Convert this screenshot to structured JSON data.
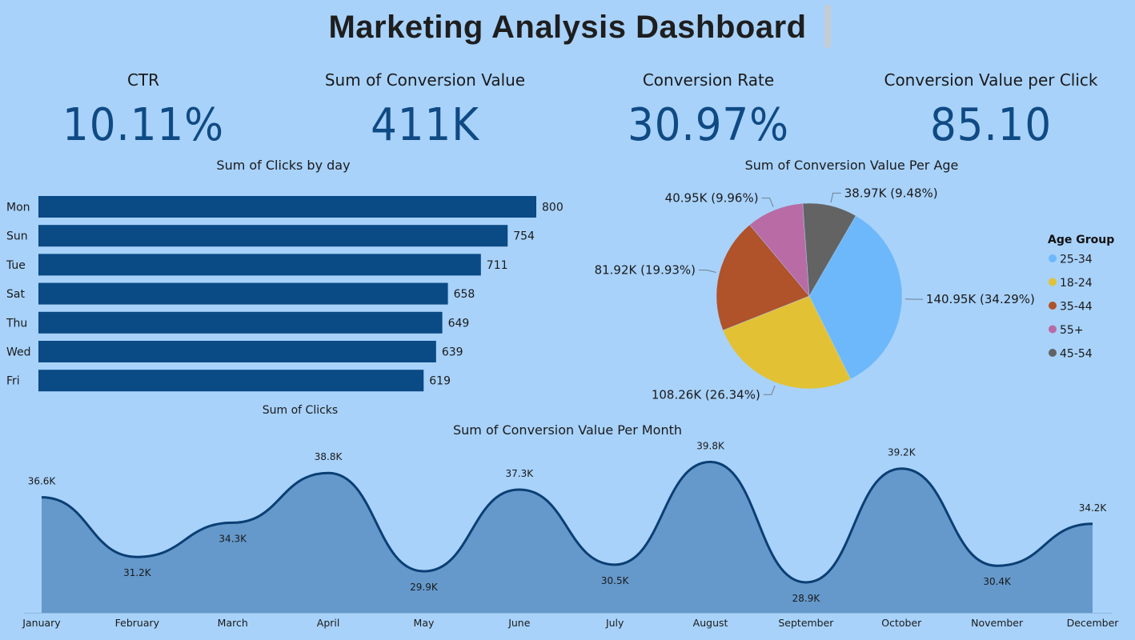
{
  "title": "Marketing Analysis Dashboard",
  "kpis": [
    {
      "label": "CTR",
      "value": "10.11%"
    },
    {
      "label": "Sum of Conversion Value",
      "value": "411K"
    },
    {
      "label": "Conversion Rate",
      "value": "30.97%"
    },
    {
      "label": "Conversion Value per Click",
      "value": "85.10"
    }
  ],
  "colors": {
    "background": "#a8d2fa",
    "bar": "#0a4a85",
    "area_fill": "#6599cb",
    "area_line": "#0b3f74"
  },
  "chart_data": [
    {
      "type": "bar",
      "orientation": "horizontal",
      "title": "Sum of Clicks by day",
      "xlabel": "Sum of Clicks",
      "ylabel": "",
      "categories": [
        "Mon",
        "Sun",
        "Tue",
        "Sat",
        "Thu",
        "Wed",
        "Fri"
      ],
      "values": [
        800,
        754,
        711,
        658,
        649,
        639,
        619
      ],
      "data_labels": [
        "800",
        "754",
        "711",
        "658",
        "649",
        "639",
        "619"
      ],
      "xlim": [
        0,
        800
      ],
      "grid": false
    },
    {
      "type": "pie",
      "title": "Sum of Conversion Value Per Age",
      "legend_title": "Age Group",
      "legend_position": "right",
      "slices": [
        {
          "label": "25-34",
          "value": 140.95,
          "data_label": "140.95K (34.29%)",
          "color": "#6cb8fb"
        },
        {
          "label": "18-24",
          "value": 108.26,
          "data_label": "108.26K (26.34%)",
          "color": "#e2c234"
        },
        {
          "label": "35-44",
          "value": 81.92,
          "data_label": "81.92K (19.93%)",
          "color": "#b0522a"
        },
        {
          "label": "55+",
          "value": 40.95,
          "data_label": "40.95K (9.96%)",
          "color": "#b96ba5"
        },
        {
          "label": "45-54",
          "value": 38.97,
          "data_label": "38.97K (9.48%)",
          "color": "#636363"
        }
      ]
    },
    {
      "type": "area",
      "title": "Sum of Conversion Value Per Month",
      "xlabel": "",
      "ylabel": "",
      "categories": [
        "January",
        "February",
        "March",
        "April",
        "May",
        "June",
        "July",
        "August",
        "September",
        "October",
        "November",
        "December"
      ],
      "values": [
        36.6,
        31.2,
        34.3,
        38.8,
        29.9,
        37.3,
        30.5,
        39.8,
        28.9,
        39.2,
        30.4,
        34.2
      ],
      "data_labels": [
        "36.6K",
        "31.2K",
        "34.3K",
        "38.8K",
        "29.9K",
        "37.3K",
        "30.5K",
        "39.8K",
        "28.9K",
        "39.2K",
        "30.4K",
        "34.2K"
      ],
      "grid": false
    }
  ]
}
